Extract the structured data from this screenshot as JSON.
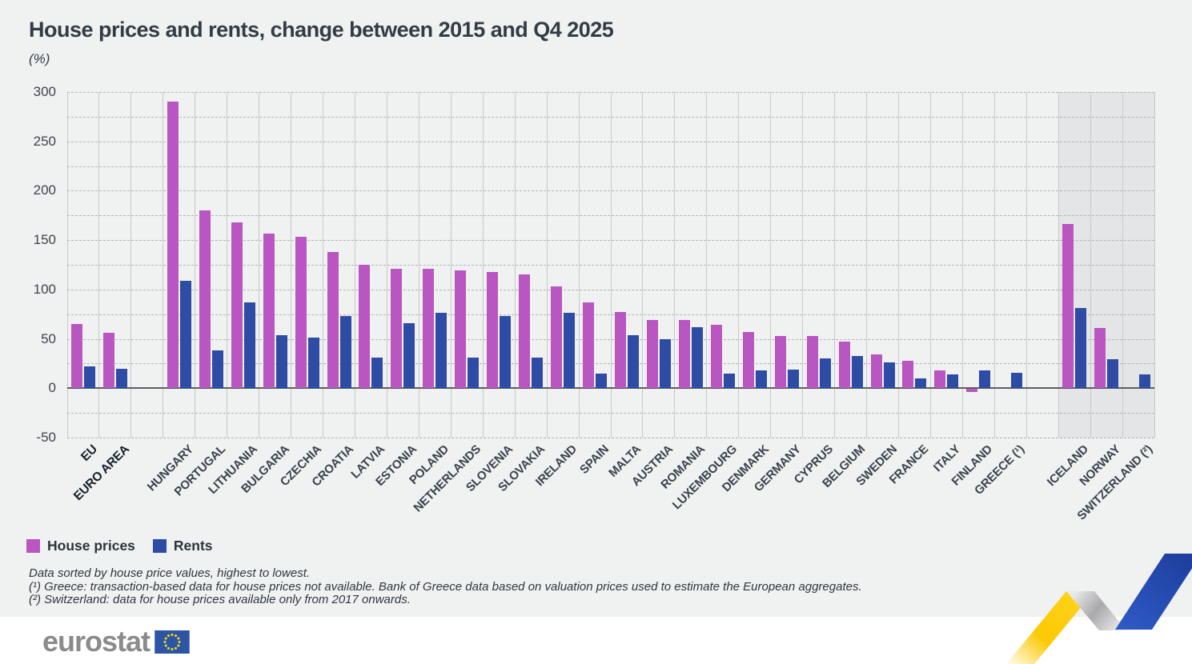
{
  "page": {
    "background": "#f0f1f1",
    "footer_background": "#ffffff"
  },
  "header": {
    "title": "House prices and rents, change between 2015 and Q4 2025",
    "unit_label": "(%)"
  },
  "chart_data": {
    "type": "bar",
    "title": "House prices and rents, change between 2015 and Q4 2025",
    "ylabel": "(%)",
    "ylim": [
      -50,
      300
    ],
    "y_label_step": 50,
    "y_grid_step": 25,
    "grid": true,
    "legend_position": "bottom-left",
    "colors": {
      "house_prices": "#b956c1",
      "rents": "#2e4ba6",
      "highlight_band": "#e4e5e6"
    },
    "series": [
      {
        "name": "House prices",
        "key": "house_prices"
      },
      {
        "name": "Rents",
        "key": "rents"
      }
    ],
    "groups": [
      {
        "label": "EU",
        "house_prices": 65,
        "rents": 22,
        "bold": true
      },
      {
        "label": "EURO AREA",
        "house_prices": 56,
        "rents": 20,
        "bold": true
      },
      {
        "label": "HUNGARY",
        "house_prices": 290,
        "rents": 109,
        "gap_before": true
      },
      {
        "label": "PORTUGAL",
        "house_prices": 180,
        "rents": 38
      },
      {
        "label": "LITHUANIA",
        "house_prices": 168,
        "rents": 87
      },
      {
        "label": "BULGARIA",
        "house_prices": 157,
        "rents": 54
      },
      {
        "label": "CZECHIA",
        "house_prices": 153,
        "rents": 51
      },
      {
        "label": "CROATIA",
        "house_prices": 138,
        "rents": 73
      },
      {
        "label": "LATVIA",
        "house_prices": 125,
        "rents": 31
      },
      {
        "label": "ESTONIA",
        "house_prices": 121,
        "rents": 66
      },
      {
        "label": "POLAND",
        "house_prices": 121,
        "rents": 76
      },
      {
        "label": "NETHERLANDS",
        "house_prices": 119,
        "rents": 31
      },
      {
        "label": "SLOVENIA",
        "house_prices": 118,
        "rents": 73
      },
      {
        "label": "SLOVAKIA",
        "house_prices": 115,
        "rents": 31
      },
      {
        "label": "IRELAND",
        "house_prices": 103,
        "rents": 76
      },
      {
        "label": "SPAIN",
        "house_prices": 87,
        "rents": 15
      },
      {
        "label": "MALTA",
        "house_prices": 77,
        "rents": 54
      },
      {
        "label": "AUSTRIA",
        "house_prices": 69,
        "rents": 50
      },
      {
        "label": "ROMANIA",
        "house_prices": 69,
        "rents": 62
      },
      {
        "label": "LUXEMBOURG",
        "house_prices": 64,
        "rents": 15
      },
      {
        "label": "DENMARK",
        "house_prices": 57,
        "rents": 18
      },
      {
        "label": "GERMANY",
        "house_prices": 53,
        "rents": 19
      },
      {
        "label": "CYPRUS",
        "house_prices": 53,
        "rents": 30
      },
      {
        "label": "BELGIUM",
        "house_prices": 47,
        "rents": 33
      },
      {
        "label": "SWEDEN",
        "house_prices": 34,
        "rents": 26
      },
      {
        "label": "FRANCE",
        "house_prices": 28,
        "rents": 10
      },
      {
        "label": "ITALY",
        "house_prices": 18,
        "rents": 14
      },
      {
        "label": "FINLAND",
        "house_prices": -3,
        "rents": 18
      },
      {
        "label": "GREECE (¹)",
        "house_prices": null,
        "rents": 16
      },
      {
        "label": "ICELAND",
        "house_prices": 166,
        "rents": 81,
        "gap_before": true,
        "highlight": true
      },
      {
        "label": "NORWAY",
        "house_prices": 61,
        "rents": 29,
        "highlight": true
      },
      {
        "label": "SWITZERLAND (²)",
        "house_prices": null,
        "rents": 14,
        "highlight": true
      }
    ]
  },
  "legend": {
    "items": [
      {
        "label": "House prices",
        "color": "#b956c1"
      },
      {
        "label": "Rents",
        "color": "#2e4ba6"
      }
    ]
  },
  "footnotes": [
    "Data sorted by house price values, highest to lowest.",
    "(¹) Greece: transaction-based data for house prices not available. Bank of Greece data based on valuation prices used to estimate the European aggregates.",
    "(²) Switzerland: data for house prices available only from 2017 onwards.",
    ""
  ],
  "footer": {
    "logo_text": "eurostat"
  }
}
